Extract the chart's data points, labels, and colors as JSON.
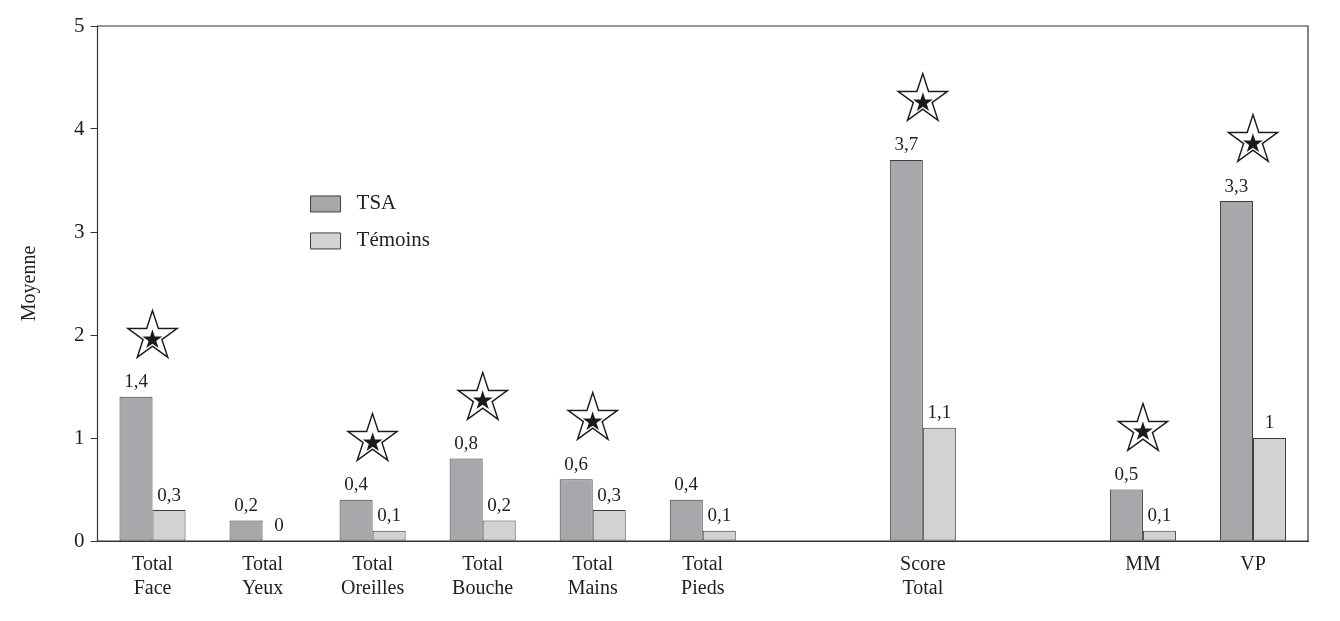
{
  "chart_data": {
    "type": "bar",
    "ylabel": "Moyenne",
    "categories": [
      "Total Face",
      "Total Yeux",
      "Total Oreilles",
      "Total Bouche",
      "Total Mains",
      "Total Pieds",
      null,
      "Score Total",
      null,
      "MM",
      "VP"
    ],
    "series": [
      {
        "name": "TSA",
        "color": "#a7a8ab",
        "values": [
          1.4,
          0.2,
          0.4,
          0.8,
          0.6,
          0.4,
          null,
          3.7,
          null,
          0.5,
          3.3
        ],
        "value_labels": [
          "1,4",
          "0,2",
          "0,4",
          "0,8",
          "0,6",
          "0,4",
          null,
          "3,7",
          null,
          "0,5",
          "3,3"
        ]
      },
      {
        "name": "Témoins",
        "color": "#d1d2d4",
        "values": [
          0.3,
          0,
          0.1,
          0.2,
          0.3,
          0.1,
          null,
          1.1,
          null,
          0.1,
          1
        ],
        "value_labels": [
          "0,3",
          "0",
          "0,1",
          "0,2",
          "0,3",
          "0,1",
          null,
          "1,1",
          null,
          "0,1",
          "1"
        ]
      }
    ],
    "ylim": [
      0,
      5
    ],
    "yticks": [
      0,
      1,
      2,
      3,
      4,
      5
    ],
    "grid": false,
    "legend": "top left",
    "annotations": [
      {
        "text": "★",
        "x": "Total Face",
        "y": 1.4
      },
      {
        "text": "★",
        "x": "Total Oreilles",
        "y": 0.4
      },
      {
        "text": "★",
        "x": "Total Bouche",
        "y": 0.8
      },
      {
        "text": "★",
        "x": "Total Mains",
        "y": 0.6
      },
      {
        "text": "★",
        "x": "Score Total",
        "y": 3.7
      },
      {
        "text": "★",
        "x": "MM",
        "y": 0.5
      },
      {
        "text": "★",
        "x": "VP",
        "y": 3.3
      }
    ]
  }
}
